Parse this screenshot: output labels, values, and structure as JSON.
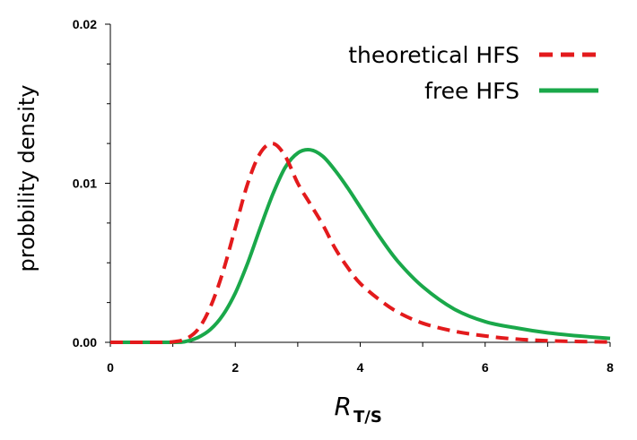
{
  "chart_data": {
    "type": "line",
    "xlabel": "R",
    "xlabel_subscript": "T/S",
    "ylabel": "probbility density",
    "xlim": [
      0,
      8
    ],
    "ylim": [
      0,
      0.02
    ],
    "x_ticks": [
      "0",
      "2",
      "4",
      "6",
      "8"
    ],
    "y_ticks": [
      "0.00",
      "0.01",
      "0.02"
    ],
    "legend_placement": "top-right",
    "grid": false,
    "series": [
      {
        "name": "theoretical HFS",
        "color": "#e31a1c",
        "style": "dashed",
        "x": [
          0,
          0.8,
          1.0,
          1.2,
          1.4,
          1.6,
          1.8,
          2.0,
          2.2,
          2.4,
          2.6,
          2.8,
          3.0,
          3.2,
          3.4,
          3.6,
          3.8,
          4.0,
          4.3,
          4.6,
          5.0,
          5.5,
          6.0,
          6.5,
          7.0,
          7.5,
          8.0
        ],
        "values": [
          0,
          0,
          3e-05,
          0.0002,
          0.0008,
          0.0022,
          0.0044,
          0.0072,
          0.01,
          0.0119,
          0.0125,
          0.0117,
          0.01,
          0.0087,
          0.0074,
          0.0059,
          0.0047,
          0.0037,
          0.0027,
          0.0019,
          0.0012,
          0.0007,
          0.0004,
          0.0002,
          0.0001,
          5e-05,
          2e-05
        ]
      },
      {
        "name": "free HFS",
        "color": "#1aa84a",
        "style": "solid",
        "x": [
          0,
          1.0,
          1.2,
          1.4,
          1.6,
          1.8,
          2.0,
          2.2,
          2.4,
          2.6,
          2.8,
          3.0,
          3.2,
          3.4,
          3.6,
          3.8,
          4.0,
          4.3,
          4.6,
          5.0,
          5.5,
          6.0,
          6.5,
          7.0,
          7.5,
          8.0
        ],
        "values": [
          0,
          0,
          5e-05,
          0.0003,
          0.0008,
          0.0017,
          0.0031,
          0.005,
          0.0072,
          0.0093,
          0.011,
          0.0119,
          0.0121,
          0.0117,
          0.0108,
          0.0097,
          0.0085,
          0.0067,
          0.0051,
          0.0035,
          0.0021,
          0.0013,
          0.0009,
          0.0006,
          0.0004,
          0.00025
        ]
      }
    ]
  }
}
